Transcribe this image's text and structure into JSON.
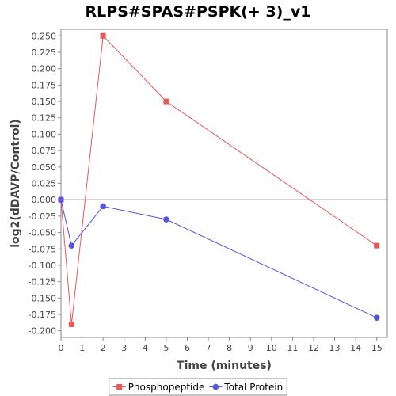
{
  "chart_data": {
    "type": "line",
    "title": "RLPS#SPAS#PSPK(+ 3)_v1",
    "xlabel": "Time (minutes)",
    "ylabel": "log2(dDAVP/Control)",
    "xlim": [
      0,
      15.5
    ],
    "ylim": [
      -0.21,
      0.26
    ],
    "x_ticks": [
      0,
      1,
      2,
      3,
      4,
      5,
      6,
      7,
      8,
      9,
      10,
      11,
      12,
      13,
      14,
      15
    ],
    "y_ticks": [
      0.25,
      0.225,
      0.2,
      0.175,
      0.15,
      0.125,
      0.1,
      0.075,
      0.05,
      0.025,
      0.0,
      -0.025,
      -0.05,
      -0.075,
      -0.1,
      -0.125,
      -0.15,
      -0.175,
      -0.2
    ],
    "y_tick_labels": [
      "0.250",
      "0.225",
      "0.200",
      "0.175",
      "0.150",
      "0.125",
      "0.100",
      "0.075",
      "0.050",
      "0.025",
      "0.000",
      "-0.025",
      "-0.050",
      "-0.075",
      "-0.100",
      "-0.125",
      "-0.150",
      "-0.175",
      "-0.200"
    ],
    "grid": false,
    "zero_line": true,
    "legend_position": "bottom",
    "series": [
      {
        "name": "Phosphopeptide",
        "color": "#e8585b",
        "marker": "square",
        "x": [
          0,
          0.5,
          2,
          5,
          15
        ],
        "y": [
          0.0,
          -0.19,
          0.25,
          0.15,
          -0.07
        ]
      },
      {
        "name": "Total Protein",
        "color": "#5555e0",
        "marker": "circle",
        "x": [
          0,
          0.5,
          2,
          5,
          15
        ],
        "y": [
          0.0,
          -0.07,
          -0.01,
          -0.03,
          -0.18
        ]
      }
    ]
  }
}
